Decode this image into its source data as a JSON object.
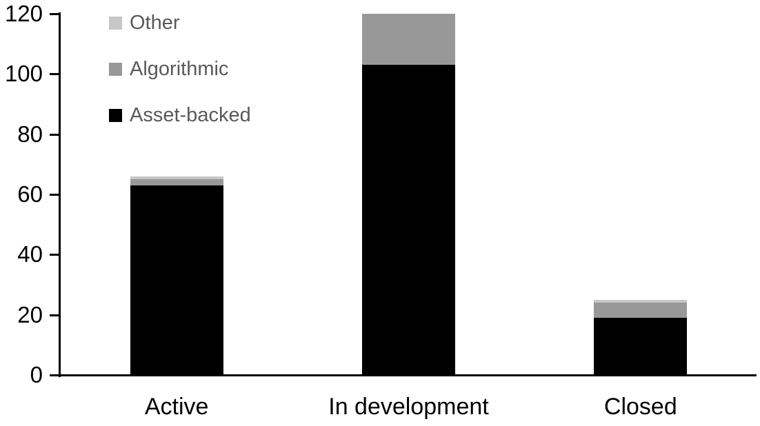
{
  "chart_data": {
    "type": "bar",
    "stacked": true,
    "title": "",
    "xlabel": "",
    "ylabel": "",
    "categories": [
      "Active",
      "In development",
      "Closed"
    ],
    "series": [
      {
        "name": "Asset-backed",
        "color": "#000000",
        "values": [
          63,
          103,
          19
        ]
      },
      {
        "name": "Algorithmic",
        "color": "#989898",
        "values": [
          2,
          17,
          5
        ]
      },
      {
        "name": "Other",
        "color": "#c7c7c7",
        "values": [
          1,
          0,
          1
        ]
      }
    ],
    "totals": [
      66,
      120,
      25
    ],
    "ylim": [
      0,
      120
    ],
    "yticks": [
      0,
      20,
      40,
      60,
      80,
      100,
      120
    ],
    "grid": false,
    "axis_color": "#000000",
    "tick_label_color": "#000000",
    "category_label_color": "#000000",
    "legend": {
      "position": "top-left",
      "order": [
        "Other",
        "Algorithmic",
        "Asset-backed"
      ],
      "text_color": "#595959"
    }
  }
}
